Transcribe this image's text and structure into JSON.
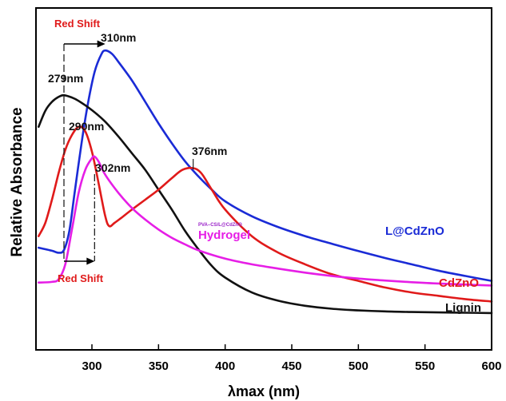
{
  "chart_data": {
    "type": "line",
    "xlabel": "λmax (nm)",
    "ylabel": "Relative Absorbance",
    "xlim": [
      258,
      600
    ],
    "ylim": [
      0,
      1
    ],
    "xticks": [
      300,
      350,
      400,
      450,
      500,
      550,
      600
    ],
    "grid": false,
    "series": [
      {
        "name": "L@CdZnO",
        "color": "#1a2bd6",
        "x": [
          260,
          270,
          275,
          279,
          283,
          287,
          292,
          297,
          302,
          307,
          310,
          315,
          320,
          330,
          340,
          350,
          360,
          370,
          380,
          390,
          400,
          420,
          440,
          460,
          480,
          500,
          520,
          540,
          560,
          580,
          600
        ],
        "y": [
          0.325,
          0.316,
          0.31,
          0.318,
          0.375,
          0.49,
          0.635,
          0.76,
          0.855,
          0.908,
          0.92,
          0.91,
          0.885,
          0.83,
          0.765,
          0.7,
          0.64,
          0.585,
          0.54,
          0.5,
          0.465,
          0.42,
          0.387,
          0.36,
          0.337,
          0.315,
          0.294,
          0.275,
          0.256,
          0.24,
          0.225
        ]
      },
      {
        "name": "Lignin",
        "color": "#111111",
        "x": [
          260,
          265,
          270,
          275,
          279,
          285,
          290,
          300,
          310,
          320,
          330,
          340,
          350,
          360,
          370,
          380,
          390,
          400,
          420,
          440,
          460,
          480,
          500,
          520,
          540,
          560,
          580,
          600
        ],
        "y": [
          0.69,
          0.738,
          0.765,
          0.78,
          0.785,
          0.778,
          0.768,
          0.74,
          0.705,
          0.66,
          0.61,
          0.56,
          0.5,
          0.44,
          0.375,
          0.32,
          0.27,
          0.235,
          0.19,
          0.165,
          0.15,
          0.141,
          0.136,
          0.133,
          0.131,
          0.13,
          0.129,
          0.128
        ]
      },
      {
        "name": "CdZnO",
        "color": "#e01a1a",
        "x": [
          260,
          265,
          270,
          275,
          280,
          285,
          290,
          295,
          300,
          305,
          310,
          313,
          317,
          322,
          330,
          340,
          350,
          360,
          368,
          376,
          382,
          390,
          400,
          420,
          440,
          460,
          480,
          500,
          520,
          540,
          560,
          580,
          600
        ],
        "y": [
          0.36,
          0.4,
          0.47,
          0.55,
          0.62,
          0.665,
          0.69,
          0.676,
          0.615,
          0.52,
          0.42,
          0.39,
          0.4,
          0.415,
          0.44,
          0.47,
          0.5,
          0.535,
          0.56,
          0.565,
          0.55,
          0.5,
          0.44,
          0.36,
          0.31,
          0.275,
          0.245,
          0.225,
          0.205,
          0.19,
          0.18,
          0.17,
          0.163
        ]
      },
      {
        "name": "PVA-CS/L@CdZnO Hydrogel",
        "color": "#e61ee6",
        "x": [
          260,
          270,
          275,
          280,
          285,
          290,
          295,
          300,
          302,
          305,
          310,
          320,
          330,
          340,
          350,
          360,
          370,
          380,
          400,
          420,
          440,
          460,
          480,
          500,
          520,
          540,
          560,
          580,
          600
        ],
        "y": [
          0.22,
          0.222,
          0.23,
          0.275,
          0.38,
          0.49,
          0.56,
          0.595,
          0.6,
          0.585,
          0.545,
          0.49,
          0.445,
          0.41,
          0.38,
          0.355,
          0.335,
          0.317,
          0.292,
          0.275,
          0.262,
          0.25,
          0.24,
          0.232,
          0.226,
          0.221,
          0.217,
          0.214,
          0.211
        ]
      }
    ],
    "peak_annotations": [
      {
        "text": "310nm",
        "x": 310,
        "y": 0.92,
        "color": "#111111"
      },
      {
        "text": "279nm",
        "x": 279,
        "y": 0.785,
        "color": "#111111"
      },
      {
        "text": "290nm",
        "x": 290,
        "y": 0.69,
        "color": "#111111"
      },
      {
        "text": "302nm",
        "x": 302,
        "y": 0.6,
        "color": "#111111"
      },
      {
        "text": "376nm",
        "x": 376,
        "y": 0.565,
        "color": "#111111"
      }
    ],
    "shift_annotations": [
      {
        "text": "Red Shift",
        "from": 279,
        "to": 310,
        "position": "top",
        "color": "#e01a1a"
      },
      {
        "text": "Red Shift",
        "from": 279,
        "to": 302,
        "position": "bottom",
        "color": "#e01a1a"
      }
    ],
    "series_labels": [
      {
        "text": "L@CdZnO",
        "color": "#1a2bd6"
      },
      {
        "text": "CdZnO",
        "color": "#e01a1a"
      },
      {
        "text": "Lignin",
        "color": "#111111"
      },
      {
        "text": "Hydrogel",
        "color": "#e61ee6"
      },
      {
        "text": "PVA–CS/L@CdZnO",
        "color": "#9a22c9"
      }
    ]
  }
}
